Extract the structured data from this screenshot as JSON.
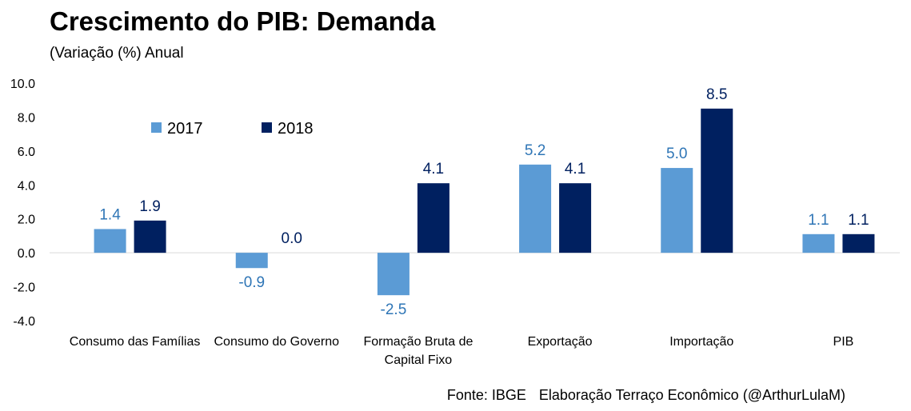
{
  "title": "Crescimento do PIB: Demanda",
  "subtitle": "(Variação (%) Anual",
  "source": "Fonte: IBGE",
  "credit": "Elaboração Terraço Econômico (@ArthurLulaM)",
  "colors": {
    "2017": "#5b9bd5",
    "2018": "#002060",
    "label2017": "#2e75b6",
    "label2018": "#002060",
    "gridline": "#d9d9d9"
  },
  "chart_data": {
    "type": "bar",
    "title": "Crescimento do PIB: Demanda",
    "subtitle": "(Variação (%) Anual",
    "categories": [
      [
        "Consumo das Famílias"
      ],
      [
        "Consumo do Governo"
      ],
      [
        "Formação Bruta de",
        "Capital Fixo"
      ],
      [
        "Exportação"
      ],
      [
        "Importação"
      ],
      [
        "PIB"
      ]
    ],
    "series": [
      {
        "name": "2017",
        "values": [
          1.4,
          -0.9,
          -2.5,
          5.2,
          5.0,
          1.1
        ],
        "labels": [
          "1.4",
          "-0.9",
          "-2.5",
          "5.2",
          "5.0",
          "1.1"
        ]
      },
      {
        "name": "2018",
        "values": [
          1.9,
          0.0,
          4.1,
          4.1,
          8.5,
          1.1
        ],
        "labels": [
          "1.9",
          "0.0",
          "4.1",
          "4.1",
          "8.5",
          "1.1"
        ]
      }
    ],
    "ylim": [
      -4.0,
      10.0
    ],
    "yticks": [
      "-4.0",
      "-2.0",
      "0.0",
      "2.0",
      "4.0",
      "6.0",
      "8.0",
      "10.0"
    ],
    "legend": "top-left",
    "grid": false
  }
}
